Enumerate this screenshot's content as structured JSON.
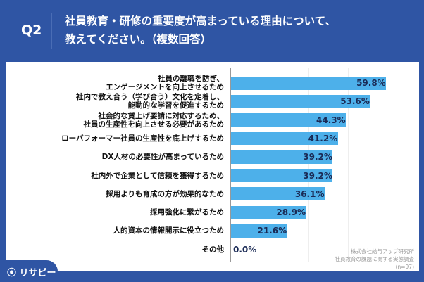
{
  "header": {
    "q": "Q2",
    "title_line1": "社員教育・研修の重要度が高まっている理由について、",
    "title_line2": "教えてください。（複数回答）"
  },
  "logo": "リサピー",
  "source": {
    "line1": "株式会社給与アップ研究所",
    "line2": "社員教育の課題に関する実態調査",
    "line3": "(n=97)"
  },
  "chart_data": {
    "type": "bar",
    "orientation": "horizontal",
    "unit": "%",
    "bar_color": "#4db0ea",
    "categories": [
      [
        "社員の離職を防ぎ、",
        "エンゲージメントを向上させるため"
      ],
      [
        "社内で教え合う（学び合う）文化を定着し、",
        "能動的な学習を促進するため"
      ],
      [
        "社会的な賃上げ要請に対応するため、",
        "社員の生産性を向上させる必要があるため"
      ],
      [
        "ローパフォーマー社員の生産性を底上げするため"
      ],
      [
        "DX人材の必要性が高まっているため"
      ],
      [
        "社内外で企業として信頼を獲得するため"
      ],
      [
        "採用よりも育成の方が効果的なため"
      ],
      [
        "採用強化に繋がるため"
      ],
      [
        "人的資本の情報開示に役立つため"
      ],
      [
        "その他"
      ]
    ],
    "values": [
      59.8,
      53.6,
      44.3,
      41.2,
      39.2,
      39.2,
      36.1,
      28.9,
      21.6,
      0.0
    ],
    "value_labels": [
      "59.8%",
      "53.6%",
      "44.3%",
      "41.2%",
      "39.2%",
      "39.2%",
      "36.1%",
      "28.9%",
      "21.6%",
      "0.0%"
    ],
    "xlim": [
      0,
      70
    ]
  }
}
